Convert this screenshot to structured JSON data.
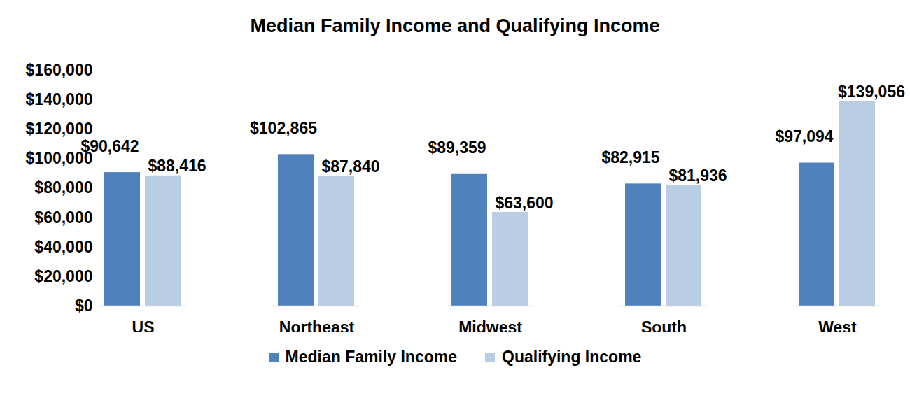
{
  "chart_data": {
    "type": "bar",
    "title": "Median Family Income and Qualifying Income",
    "categories": [
      "US",
      "Northeast",
      "Midwest",
      "South",
      "West"
    ],
    "series": [
      {
        "name": "Median Family Income",
        "color": "#4f81bd",
        "values": [
          90642,
          102865,
          89359,
          82915,
          97094
        ],
        "value_labels": [
          "$90,642",
          "$102,865",
          "$89,359",
          "$82,915",
          "$97,094"
        ]
      },
      {
        "name": "Qualifying Income",
        "color": "#b9cde5",
        "values": [
          88416,
          87840,
          63600,
          81936,
          139056
        ],
        "value_labels": [
          "$88,416",
          "$87,840",
          "$63,600",
          "$81,936",
          "$139,056"
        ]
      }
    ],
    "ylim": [
      0,
      160000
    ],
    "yticks": [
      {
        "value": 0,
        "label": "$0"
      },
      {
        "value": 20000,
        "label": "$20,000"
      },
      {
        "value": 40000,
        "label": "$40,000"
      },
      {
        "value": 60000,
        "label": "$60,000"
      },
      {
        "value": 80000,
        "label": "$80,000"
      },
      {
        "value": 100000,
        "label": "$100,000"
      },
      {
        "value": 120000,
        "label": "$120,000"
      },
      {
        "value": 140000,
        "label": "$140,000"
      },
      {
        "value": 160000,
        "label": "$160,000"
      }
    ],
    "grid": false,
    "data_labels": true,
    "legend": "bottom"
  }
}
